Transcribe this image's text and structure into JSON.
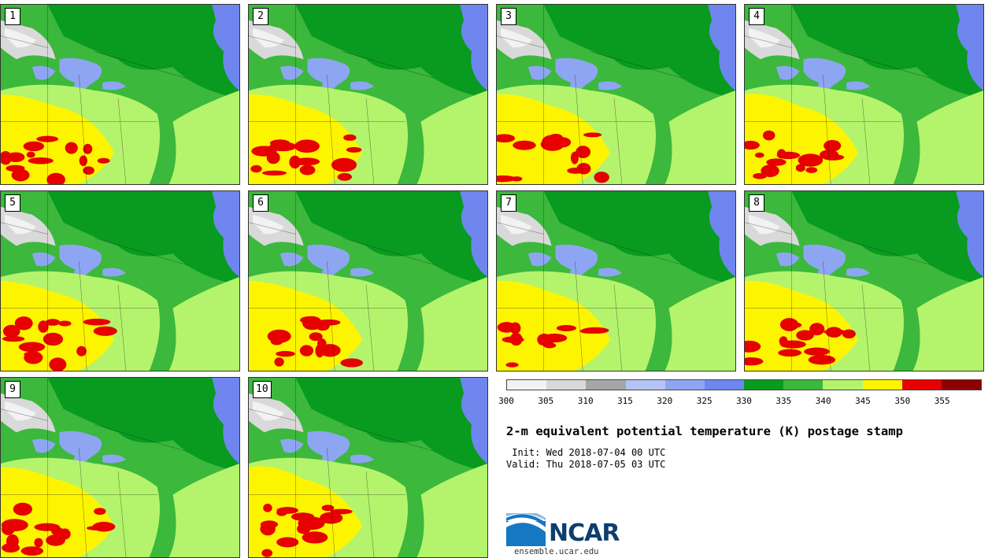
{
  "title": "2-m equivalent potential temperature (K) postage stamp",
  "init_label": " Init: Wed 2018-07-04 00 UTC",
  "valid_label": "Valid: Thu 2018-07-05 03 UTC",
  "logo_text": "NCAR",
  "site": "ensemble.ucar.edu",
  "members": [
    "1",
    "2",
    "3",
    "4",
    "5",
    "6",
    "7",
    "8",
    "9",
    "10"
  ],
  "colorbar": {
    "ticks": [
      "300",
      "305",
      "310",
      "315",
      "320",
      "325",
      "330",
      "335",
      "340",
      "345",
      "350",
      "355"
    ],
    "colors": [
      "#f2f2f2",
      "#d9d9d9",
      "#a6a6a6",
      "#b4c4f5",
      "#8ea6f2",
      "#6f86ef",
      "#089b20",
      "#3cb83c",
      "#b4f46c",
      "#fdf500",
      "#e60000",
      "#8b0000"
    ]
  }
}
